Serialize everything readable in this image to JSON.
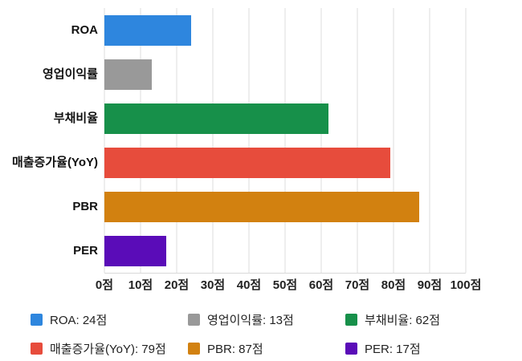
{
  "chart_data": {
    "type": "bar",
    "orientation": "horizontal",
    "title": "",
    "categories": [
      "ROA",
      "영업이익률",
      "부채비율",
      "매출증가율(YoY)",
      "PBR",
      "PER"
    ],
    "values": [
      24,
      13,
      62,
      79,
      87,
      17
    ],
    "unit": "점",
    "colors": [
      "#2e86de",
      "#999999",
      "#17904a",
      "#e74c3c",
      "#d28110",
      "#5a0cb8"
    ],
    "xlim": [
      0,
      100
    ],
    "x_ticks": [
      "0점",
      "10점",
      "20점",
      "30점",
      "40점",
      "50점",
      "60점",
      "70점",
      "80점",
      "90점",
      "100점"
    ],
    "grid": true,
    "legend_position": "bottom",
    "legend_items": [
      {
        "label": "ROA: 24점",
        "color": "#2e86de"
      },
      {
        "label": "영업이익률: 13점",
        "color": "#999999"
      },
      {
        "label": "부채비율: 62점",
        "color": "#17904a"
      },
      {
        "label": "매출증가율(YoY): 79점",
        "color": "#e74c3c"
      },
      {
        "label": "PBR: 87점",
        "color": "#d28110"
      },
      {
        "label": "PER: 17점",
        "color": "#5a0cb8"
      }
    ]
  },
  "styles": {
    "background": "#ffffff",
    "grid_color": "#dcdcdc",
    "axis_color": "#d9d9d9",
    "category_label_color": "#111111",
    "tick_label_color": "#222222",
    "legend_text_color": "#222222"
  }
}
